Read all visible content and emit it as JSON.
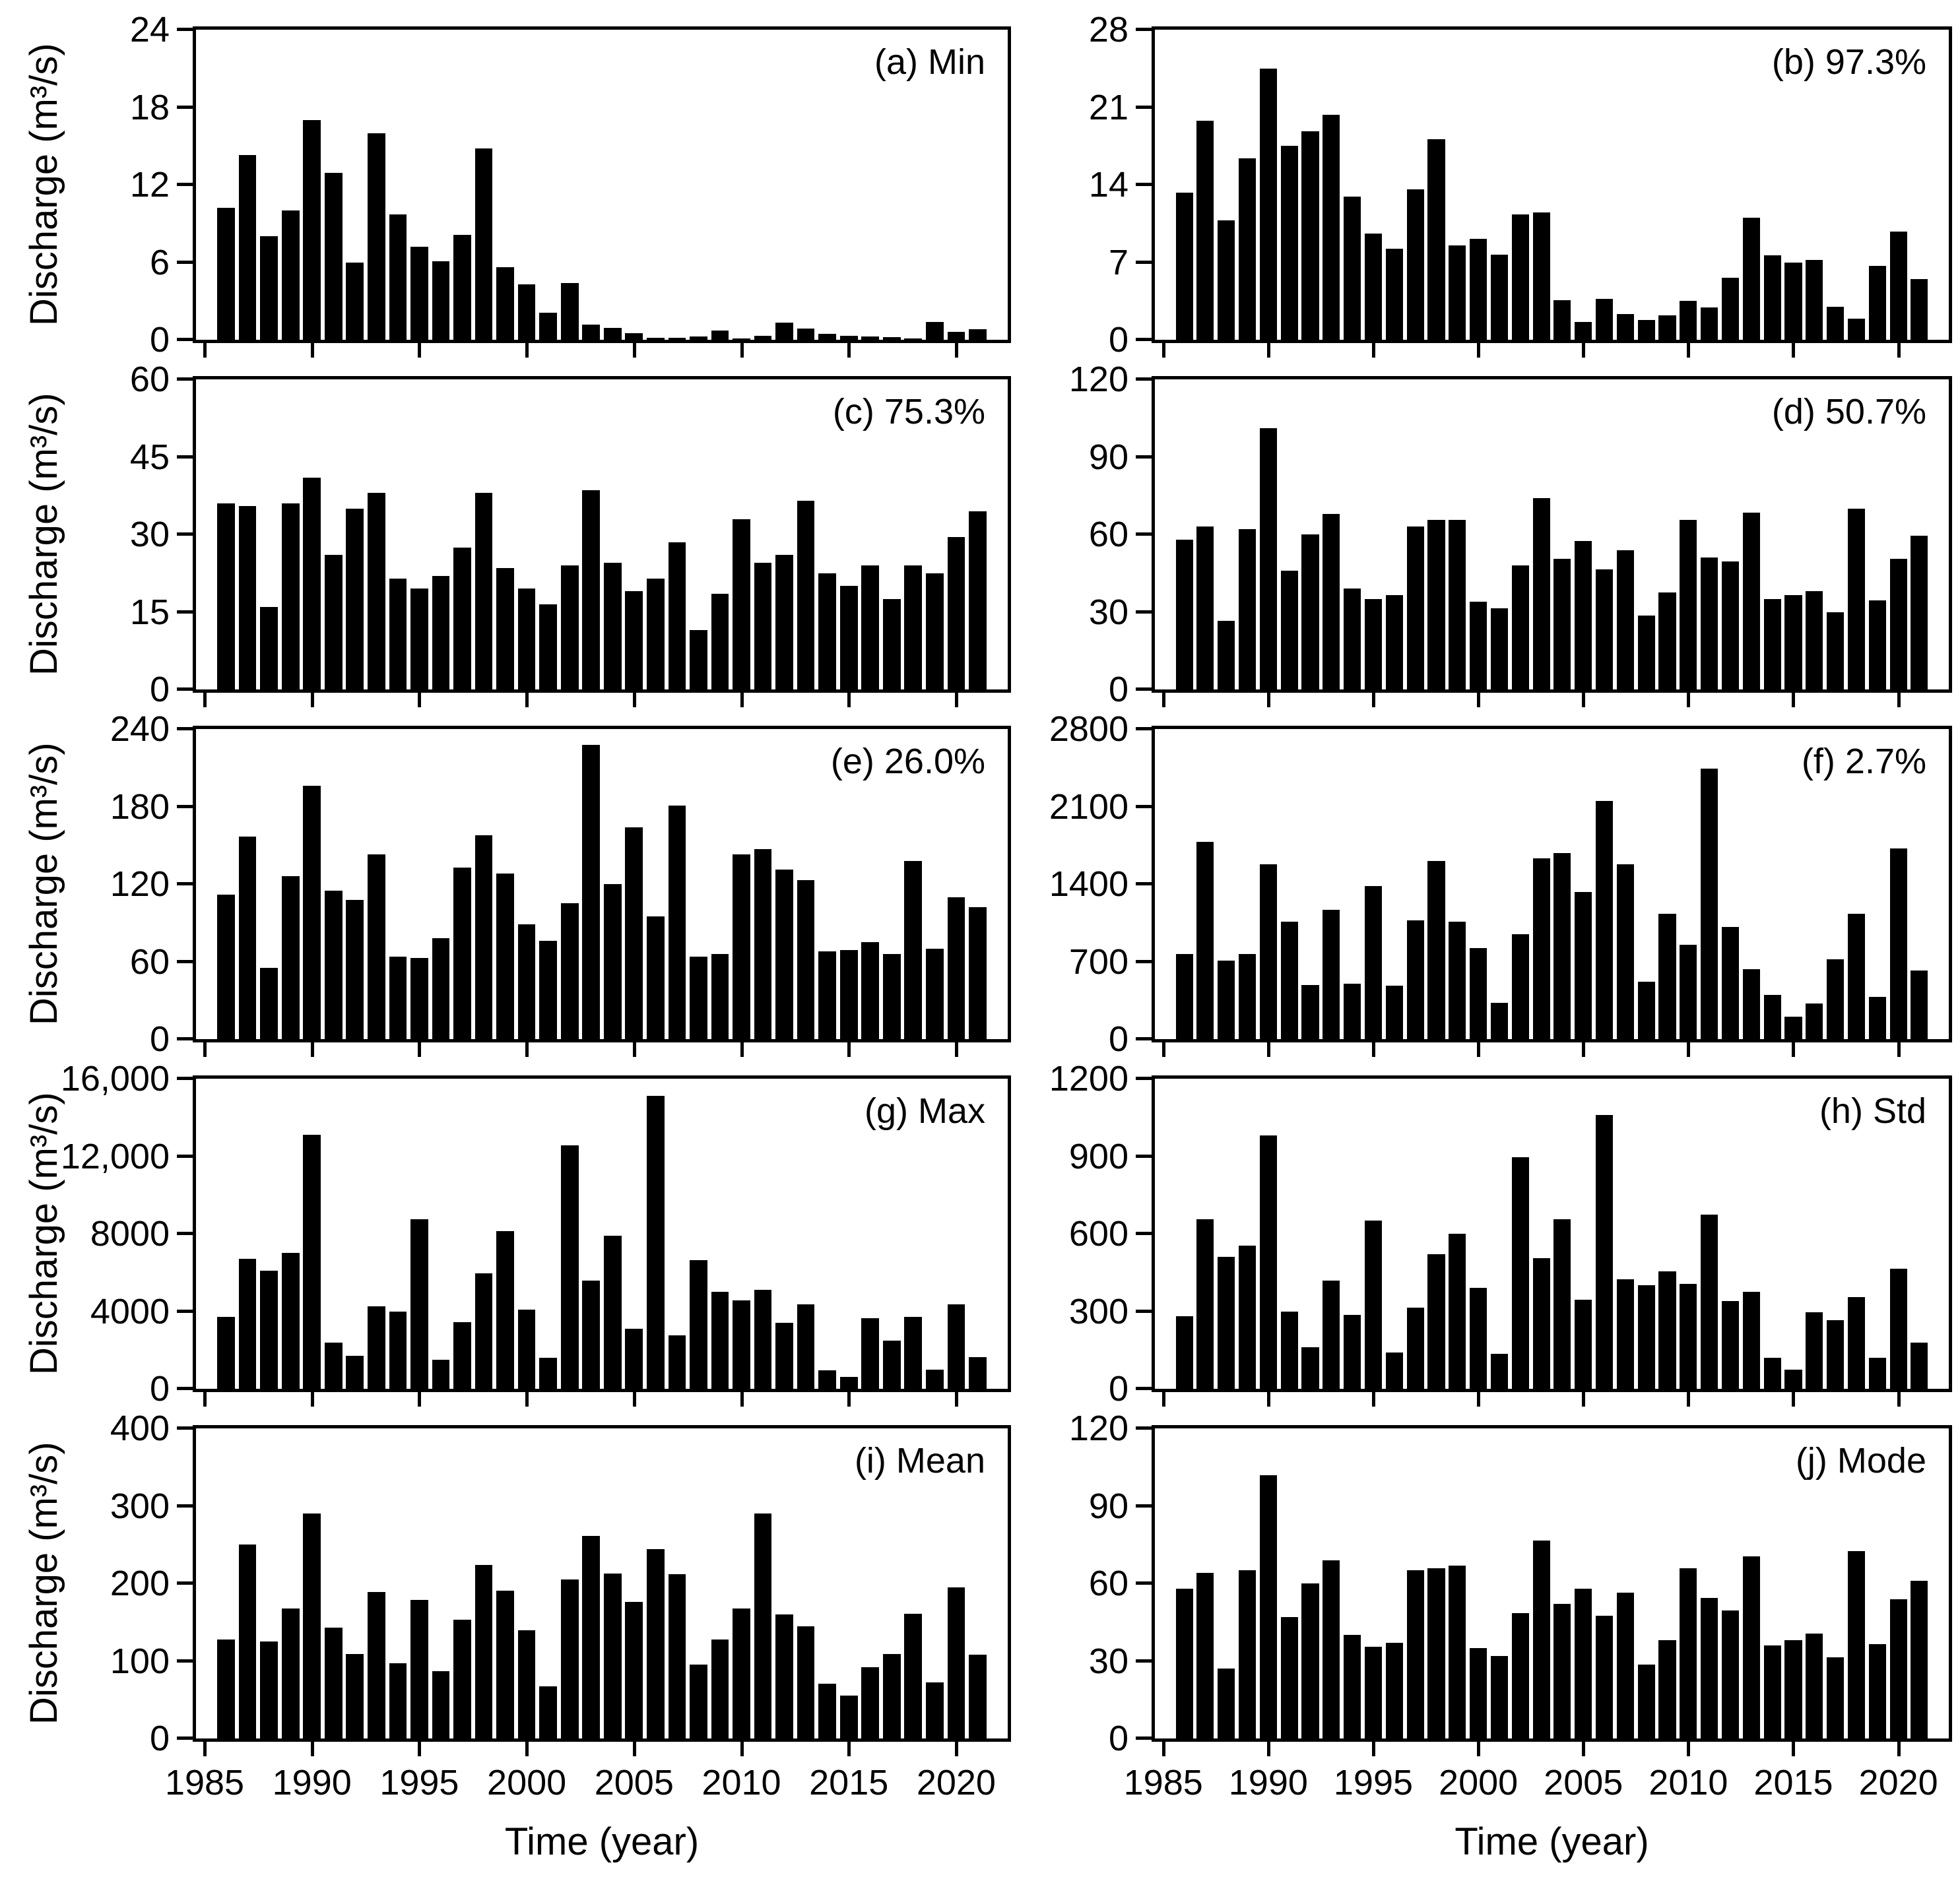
{
  "figure": {
    "background": "#ffffff",
    "bar_color": "#000000",
    "axis_color": "#000000",
    "ylabel": "Discharge (m³/s)",
    "xlabel": "Time (year)"
  },
  "chart_data": {
    "type": "bar",
    "title": "",
    "xlabel": "Time (year)",
    "ylabel": "Discharge (m³/s)",
    "grid": false,
    "legend": "none",
    "categories": [
      1986,
      1987,
      1988,
      1989,
      1990,
      1991,
      1992,
      1993,
      1994,
      1995,
      1996,
      1997,
      1998,
      1999,
      2000,
      2001,
      2002,
      2003,
      2004,
      2005,
      2006,
      2007,
      2008,
      2009,
      2010,
      2011,
      2012,
      2013,
      2014,
      2015,
      2016,
      2017,
      2018,
      2019,
      2020,
      2021
    ],
    "x_axis_range": [
      1984.6,
      2022.4
    ],
    "x_axis_ticks": [
      1985,
      1990,
      1995,
      2000,
      2005,
      2010,
      2015,
      2020
    ],
    "x_tick_labels": [
      "1985",
      "1990",
      "1995",
      "2000",
      "2005",
      "2010",
      "2015",
      "2020"
    ],
    "panels": [
      {
        "id": "a",
        "label": "(a) Min",
        "stat": "Min",
        "ylim": [
          0,
          24
        ],
        "yticks": [
          0,
          6,
          12,
          18,
          24
        ],
        "ytick_labels": [
          "0",
          "6",
          "12",
          "18",
          "24"
        ],
        "values": [
          10.2,
          14.3,
          8,
          10,
          17,
          12.9,
          6,
          16,
          9.7,
          7.2,
          6.1,
          8.1,
          14.8,
          5.6,
          4.3,
          2.1,
          4.4,
          1.2,
          0.9,
          0.5,
          0.15,
          0.15,
          0.25,
          0.7,
          0.1,
          0.3,
          1.35,
          0.85,
          0.45,
          0.3,
          0.25,
          0.2,
          0.1,
          1.4,
          0.6,
          0.8
        ]
      },
      {
        "id": "b",
        "label": "(b) 97.3%",
        "stat": "97.3%",
        "ylim": [
          0,
          28
        ],
        "yticks": [
          0,
          7,
          14,
          21,
          28
        ],
        "ytick_labels": [
          "0",
          "7",
          "14",
          "21",
          "28"
        ],
        "values": [
          13.3,
          19.8,
          10.8,
          16.4,
          24.5,
          17.5,
          18.8,
          20.3,
          12.9,
          9.6,
          8.2,
          13.6,
          18.1,
          8.5,
          9.1,
          7.7,
          11.3,
          11.5,
          3.6,
          1.6,
          3.7,
          2.3,
          1.8,
          2.2,
          3.5,
          2.9,
          5.6,
          11,
          7.6,
          7,
          7.2,
          3,
          1.9,
          6.7,
          9.8,
          5.5
        ]
      },
      {
        "id": "c",
        "label": "(c) 75.3%",
        "stat": "75.3%",
        "ylim": [
          0,
          60
        ],
        "yticks": [
          0,
          15,
          30,
          45,
          60
        ],
        "ytick_labels": [
          "0",
          "15",
          "30",
          "45",
          "60"
        ],
        "values": [
          36,
          35.5,
          16,
          36,
          41,
          26,
          35,
          38,
          21.5,
          19.5,
          22,
          27.5,
          38,
          23.5,
          19.5,
          16.5,
          24,
          38.5,
          24.5,
          19,
          21.5,
          28.5,
          11.5,
          18.5,
          33,
          24.5,
          26,
          36.5,
          22.5,
          20,
          24,
          17.5,
          24,
          22.5,
          29.5,
          34.5
        ]
      },
      {
        "id": "d",
        "label": "(d) 50.7%",
        "stat": "50.7%",
        "ylim": [
          0,
          120
        ],
        "yticks": [
          0,
          30,
          60,
          90,
          120
        ],
        "ytick_labels": [
          "0",
          "30",
          "60",
          "90",
          "120"
        ],
        "values": [
          58,
          63,
          26.5,
          62,
          101,
          46,
          60,
          68,
          39,
          35,
          36.5,
          63,
          65.5,
          65.5,
          34,
          31.5,
          48,
          74,
          50.5,
          57.5,
          46.5,
          54,
          28.5,
          37.5,
          65.5,
          51,
          49.5,
          68.5,
          35,
          36.5,
          38,
          30,
          70,
          34.5,
          50.5,
          59.5
        ]
      },
      {
        "id": "e",
        "label": "(e) 26.0%",
        "stat": "26.0%",
        "ylim": [
          0,
          240
        ],
        "yticks": [
          0,
          60,
          120,
          180,
          240
        ],
        "ytick_labels": [
          "0",
          "60",
          "120",
          "180",
          "240"
        ],
        "values": [
          112,
          157,
          55,
          126,
          196,
          115,
          108,
          143,
          64,
          63,
          78,
          133,
          158,
          128,
          89,
          76,
          105,
          228,
          120,
          164,
          95,
          181,
          64,
          66,
          143,
          147,
          131,
          123,
          68,
          69,
          75,
          66,
          138,
          70,
          110,
          102
        ]
      },
      {
        "id": "f",
        "label": "(f) 2.7%",
        "stat": "2.7%",
        "ylim": [
          0,
          2800
        ],
        "yticks": [
          0,
          700,
          1400,
          2100,
          2800
        ],
        "ytick_labels": [
          "0",
          "700",
          "1400",
          "2100",
          "2800"
        ],
        "values": [
          770,
          1780,
          710,
          770,
          1580,
          1060,
          490,
          1170,
          500,
          1380,
          480,
          1070,
          1610,
          1060,
          820,
          330,
          950,
          1630,
          1680,
          1330,
          2150,
          1580,
          520,
          1130,
          850,
          2440,
          1010,
          630,
          400,
          200,
          320,
          720,
          1130,
          380,
          1720,
          620
        ]
      },
      {
        "id": "g",
        "label": "(g) Max",
        "stat": "Max",
        "ylim": [
          0,
          16000
        ],
        "yticks": [
          0,
          4000,
          8000,
          12000,
          16000
        ],
        "ytick_labels": [
          "0",
          "4000",
          "8000",
          "12,000",
          "16,000"
        ],
        "values": [
          3700,
          6700,
          6100,
          7000,
          13100,
          2400,
          1700,
          4250,
          4000,
          8750,
          1500,
          3450,
          5950,
          8150,
          4100,
          1600,
          12550,
          5600,
          7900,
          3100,
          15100,
          2750,
          6650,
          5000,
          4550,
          5100,
          3400,
          4350,
          950,
          600,
          3650,
          2500,
          3700,
          1000,
          4350,
          1650
        ]
      },
      {
        "id": "h",
        "label": "(h) Std",
        "stat": "Std",
        "ylim": [
          0,
          1200
        ],
        "yticks": [
          0,
          300,
          600,
          900,
          1200
        ],
        "ytick_labels": [
          "0",
          "300",
          "600",
          "900",
          "1200"
        ],
        "values": [
          280,
          655,
          510,
          555,
          980,
          300,
          160,
          420,
          285,
          650,
          140,
          315,
          520,
          600,
          390,
          135,
          895,
          505,
          655,
          345,
          1060,
          425,
          400,
          455,
          405,
          675,
          340,
          375,
          120,
          75,
          295,
          265,
          355,
          120,
          465,
          180
        ]
      },
      {
        "id": "i",
        "label": "(i) Mean",
        "stat": "Mean",
        "ylim": [
          0,
          400
        ],
        "yticks": [
          0,
          100,
          200,
          300,
          400
        ],
        "ytick_labels": [
          "0",
          "100",
          "200",
          "300",
          "400"
        ],
        "values": [
          128,
          250,
          125,
          168,
          290,
          143,
          109,
          189,
          97,
          179,
          87,
          153,
          224,
          191,
          140,
          67,
          205,
          261,
          213,
          176,
          244,
          212,
          95,
          128,
          168,
          290,
          160,
          145,
          71,
          55,
          92,
          109,
          161,
          72,
          195,
          108
        ]
      },
      {
        "id": "j",
        "label": "(j) Mode",
        "stat": "Mode",
        "ylim": [
          0,
          120
        ],
        "yticks": [
          0,
          30,
          60,
          90,
          120
        ],
        "ytick_labels": [
          "0",
          "30",
          "60",
          "90",
          "120"
        ],
        "values": [
          58,
          64,
          27,
          65,
          102,
          47,
          60,
          69,
          40,
          35.5,
          37,
          65,
          66,
          67,
          35,
          32,
          48.5,
          76.5,
          52,
          58,
          47.5,
          56.5,
          28.5,
          38,
          66,
          54.5,
          49.5,
          70.5,
          36,
          38,
          40.5,
          31.5,
          72.5,
          36.5,
          54,
          61
        ]
      }
    ]
  }
}
